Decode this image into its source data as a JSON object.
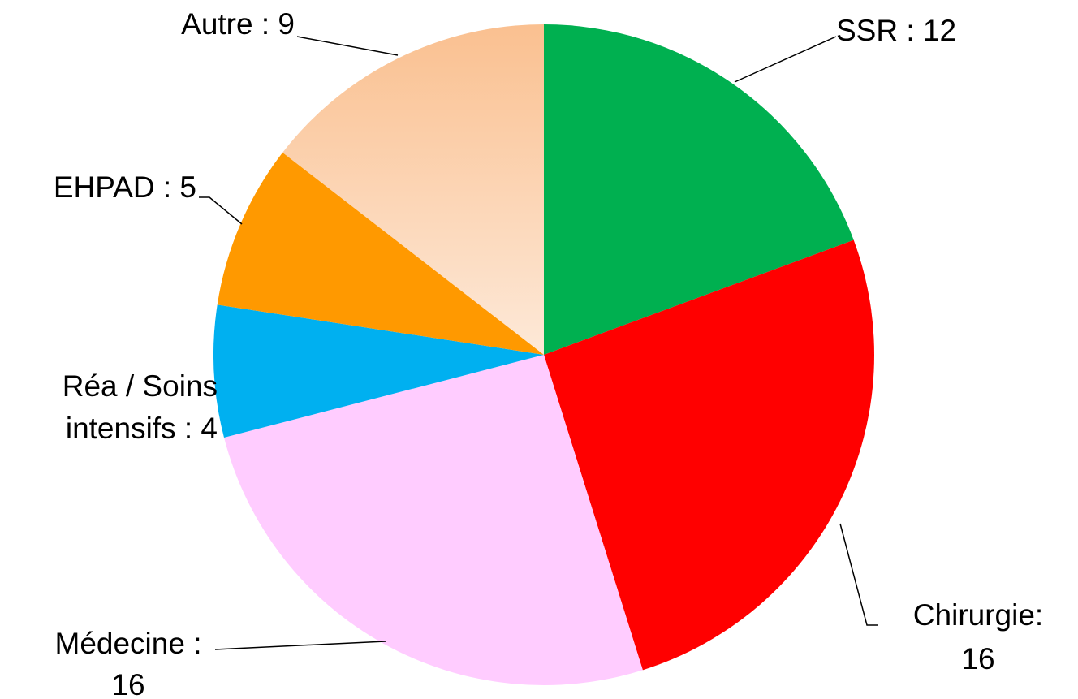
{
  "chart_data": {
    "type": "pie",
    "labels": [
      "SSR : 12",
      [
        "Chirurgie:",
        "16"
      ],
      [
        "Médecine :",
        "16"
      ],
      [
        "Réa / Soins",
        "intensifs : 4"
      ],
      "EHPAD : 5",
      "Autre : 9"
    ],
    "values": [
      12,
      16,
      16,
      4,
      5,
      9
    ],
    "colors": [
      "#00b050",
      "#ff0000",
      "#ffccff",
      "#00b0f0",
      "#ff9900",
      "#fac090"
    ],
    "gradient": [
      false,
      false,
      false,
      false,
      false,
      true
    ]
  }
}
